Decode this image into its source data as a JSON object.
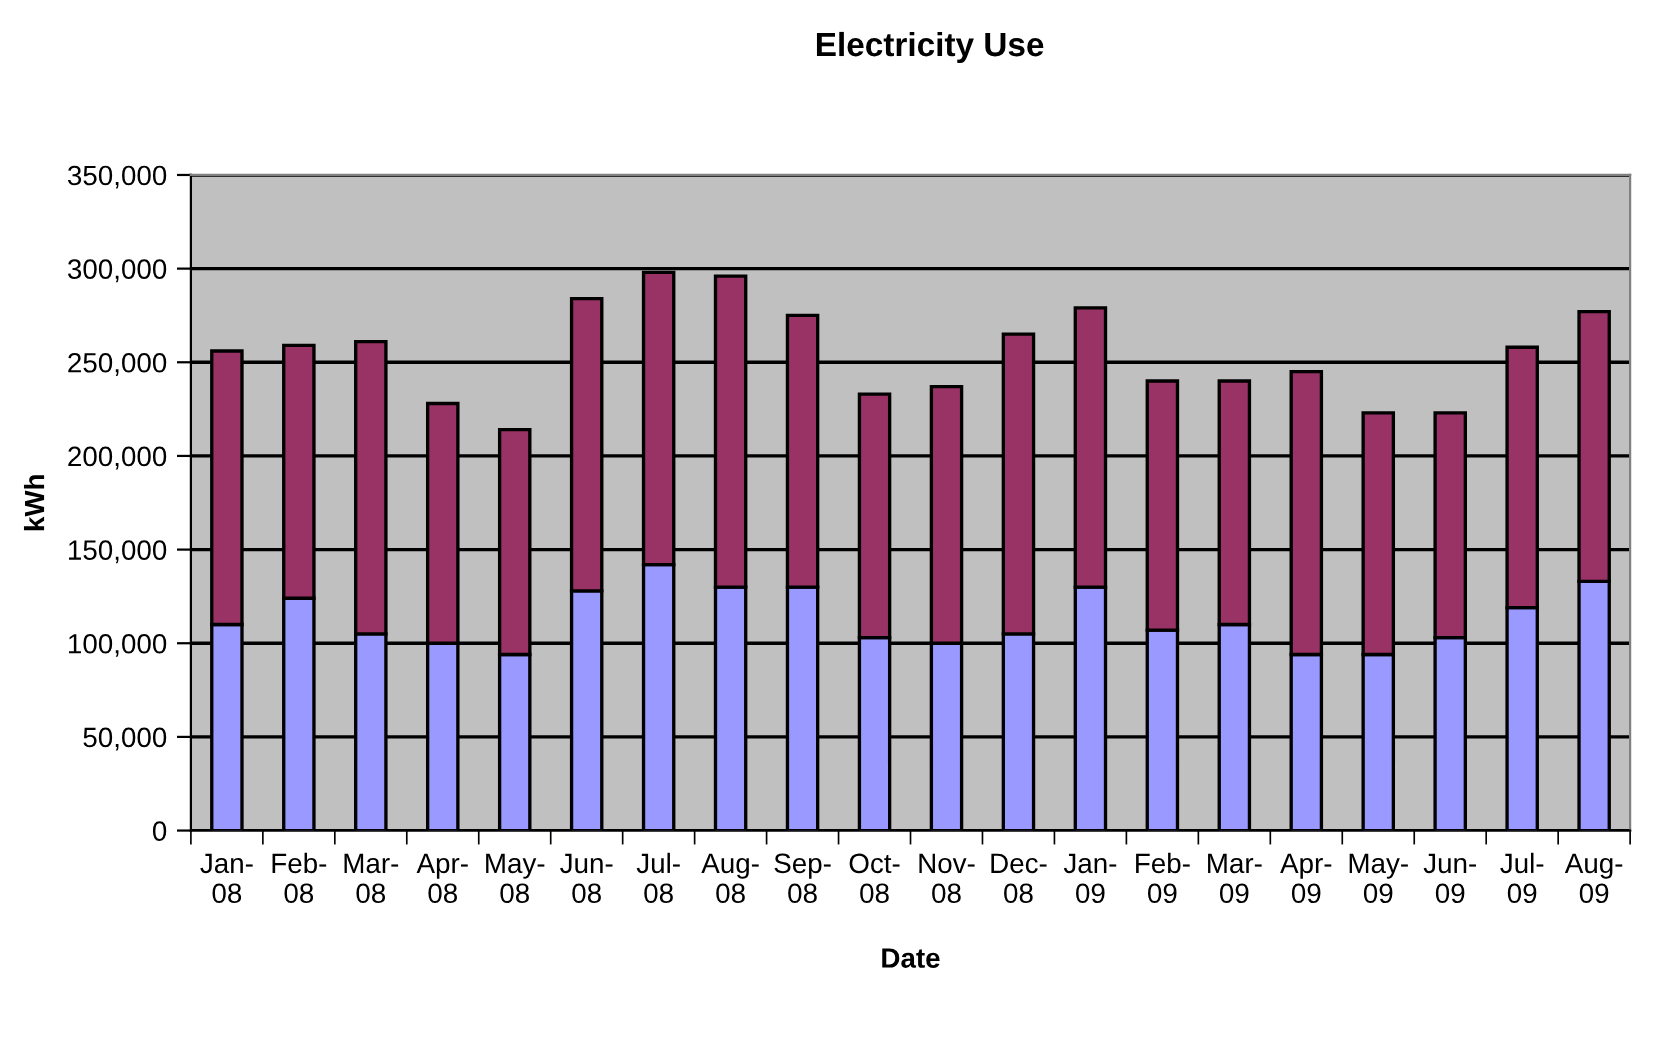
{
  "chart_data": {
    "type": "bar",
    "title": "Electricity Use",
    "xlabel": "Date",
    "ylabel": "kWh",
    "stacked": true,
    "categories": [
      "Jan-08",
      "Feb-08",
      "Mar-08",
      "Apr-08",
      "May-08",
      "Jun-08",
      "Jul-08",
      "Aug-08",
      "Sep-08",
      "Oct-08",
      "Nov-08",
      "Dec-08",
      "Jan-09",
      "Feb-09",
      "Mar-09",
      "Apr-09",
      "May-09",
      "Jun-09",
      "Jul-09",
      "Aug-09"
    ],
    "series": [
      {
        "color": "#9999ff",
        "values": [
          110000,
          124000,
          105000,
          100000,
          94000,
          128000,
          142000,
          130000,
          130000,
          103000,
          100000,
          105000,
          130000,
          107000,
          110000,
          94000,
          94000,
          103000,
          119000,
          133000
        ]
      },
      {
        "color": "#993366",
        "values": [
          146000,
          135000,
          156000,
          128000,
          120000,
          156000,
          156000,
          166000,
          145000,
          130000,
          137000,
          160000,
          149000,
          133000,
          130000,
          151000,
          129000,
          120000,
          139000,
          144000
        ]
      }
    ],
    "ylim": [
      0,
      350000
    ],
    "yticks": [
      {
        "value": 0,
        "label": "0"
      },
      {
        "value": 50000,
        "label": "50,000"
      },
      {
        "value": 100000,
        "label": "100,000"
      },
      {
        "value": 150000,
        "label": "150,000"
      },
      {
        "value": 200000,
        "label": "200,000"
      },
      {
        "value": 250000,
        "label": "250,000"
      },
      {
        "value": 300000,
        "label": "300,000"
      },
      {
        "value": 350000,
        "label": "350,000"
      }
    ],
    "grid": "y"
  }
}
